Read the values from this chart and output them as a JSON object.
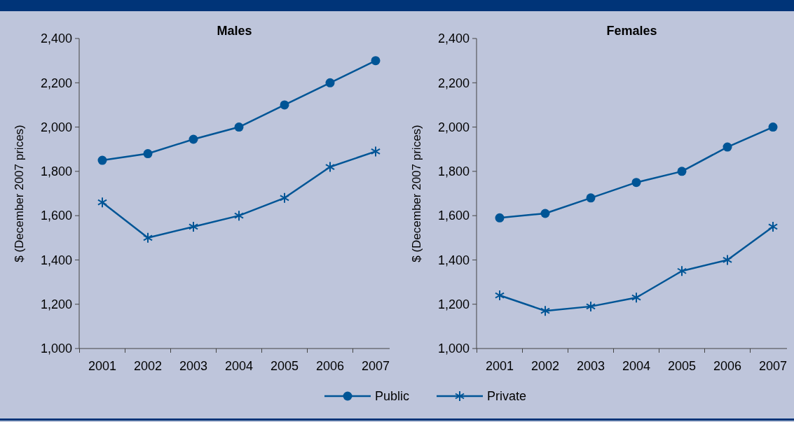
{
  "chart_data": [
    {
      "type": "line",
      "title": "Males",
      "ylabel": "$ (December 2007 prices)",
      "categories": [
        "2001",
        "2002",
        "2003",
        "2004",
        "2005",
        "2006",
        "2007"
      ],
      "ylim": [
        1000,
        2400
      ],
      "yticks": [
        {
          "value": 1000,
          "label": "1,000"
        },
        {
          "value": 1200,
          "label": "1,200"
        },
        {
          "value": 1400,
          "label": "1,400"
        },
        {
          "value": 1600,
          "label": "1,600"
        },
        {
          "value": 1800,
          "label": "1,800"
        },
        {
          "value": 2000,
          "label": "2,000"
        },
        {
          "value": 2200,
          "label": "2,200"
        },
        {
          "value": 2400,
          "label": "2,400"
        }
      ],
      "grid": false,
      "legend": "bottom",
      "series": [
        {
          "name": "Public",
          "color": "#005596",
          "marker": "circle",
          "values": [
            1850,
            1880,
            1945,
            2000,
            2100,
            2200,
            2300
          ]
        },
        {
          "name": "Private",
          "color": "#005596",
          "marker": "cross",
          "values": [
            1660,
            1500,
            1550,
            1600,
            1680,
            1820,
            1890
          ]
        }
      ]
    },
    {
      "type": "line",
      "title": "Females",
      "ylabel": "$ (December 2007 prices)",
      "categories": [
        "2001",
        "2002",
        "2003",
        "2004",
        "2005",
        "2006",
        "2007"
      ],
      "ylim": [
        1000,
        2400
      ],
      "yticks": [
        {
          "value": 1000,
          "label": "1,000"
        },
        {
          "value": 1200,
          "label": "1,200"
        },
        {
          "value": 1400,
          "label": "1,400"
        },
        {
          "value": 1600,
          "label": "1,600"
        },
        {
          "value": 1800,
          "label": "1,800"
        },
        {
          "value": 2000,
          "label": "2,000"
        },
        {
          "value": 2200,
          "label": "2,200"
        },
        {
          "value": 2400,
          "label": "2,400"
        }
      ],
      "grid": false,
      "series": [
        {
          "color": "#005596",
          "marker": "circle",
          "values": [
            1590,
            1610,
            1680,
            1750,
            1800,
            1910,
            2000
          ]
        },
        {
          "color": "#005596",
          "marker": "cross",
          "values": [
            1240,
            1170,
            1190,
            1230,
            1350,
            1400,
            1550
          ]
        }
      ]
    }
  ]
}
